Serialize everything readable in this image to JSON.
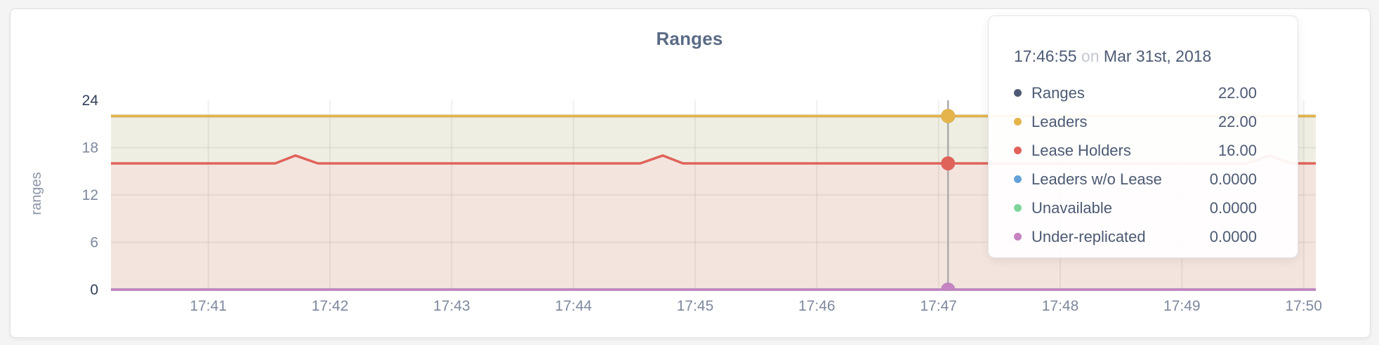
{
  "chart_data": {
    "type": "line",
    "title": "Ranges",
    "ylabel": "ranges",
    "ylim": [
      0,
      24
    ],
    "yticks": [
      0,
      6,
      12,
      18,
      24
    ],
    "yticks_emphasized": [
      0,
      24
    ],
    "grid": true,
    "x_domain": [
      "17:40:12",
      "17:50:06"
    ],
    "xticks": [
      "17:41",
      "17:42",
      "17:43",
      "17:44",
      "17:45",
      "17:46",
      "17:47",
      "17:48",
      "17:49",
      "17:50"
    ],
    "series": [
      {
        "name": "Ranges",
        "color": "#4f5b75",
        "points": [
          [
            "17:40:12",
            22
          ],
          [
            "17:50:06",
            22
          ]
        ]
      },
      {
        "name": "Leaders",
        "color": "#e5b44a",
        "points": [
          [
            "17:40:12",
            22
          ],
          [
            "17:50:06",
            22
          ]
        ]
      },
      {
        "name": "Lease Holders",
        "color": "#e0635a",
        "points": [
          [
            "17:40:12",
            16
          ],
          [
            "17:41:33",
            16
          ],
          [
            "17:41:43",
            17
          ],
          [
            "17:41:54",
            16
          ],
          [
            "17:44:33",
            16
          ],
          [
            "17:44:44",
            17
          ],
          [
            "17:44:54",
            16
          ],
          [
            "17:49:32",
            16
          ],
          [
            "17:49:43",
            17
          ],
          [
            "17:49:54",
            16
          ],
          [
            "17:50:06",
            16
          ]
        ]
      },
      {
        "name": "Leaders w/o Lease",
        "color": "#64a1d9",
        "points": [
          [
            "17:40:12",
            0
          ],
          [
            "17:50:06",
            0
          ]
        ]
      },
      {
        "name": "Unavailable",
        "color": "#7ed49a",
        "points": [
          [
            "17:40:12",
            0
          ],
          [
            "17:50:06",
            0
          ]
        ]
      },
      {
        "name": "Under-replicated",
        "color": "#c583c1",
        "points": [
          [
            "17:40:12",
            0
          ],
          [
            "17:50:06",
            0
          ]
        ]
      }
    ],
    "areas": [
      {
        "top": "Leaders",
        "bottom": "Lease Holders",
        "color": "#efeee2"
      },
      {
        "top": "Lease Holders",
        "bottom": 0,
        "color": "#f3e4de"
      }
    ],
    "hover": {
      "time": "17:46:55",
      "values": {
        "Ranges": 22,
        "Leaders": 22,
        "Lease Holders": 16,
        "Leaders w/o Lease": 0,
        "Unavailable": 0,
        "Under-replicated": 0
      }
    }
  },
  "tooltip": {
    "time": "17:46:55",
    "connector": "on",
    "date": "Mar 31st, 2018",
    "rows": [
      {
        "label": "Ranges",
        "value": "22.00",
        "color": "#4f5b75"
      },
      {
        "label": "Leaders",
        "value": "22.00",
        "color": "#e5b44a"
      },
      {
        "label": "Lease Holders",
        "value": "16.00",
        "color": "#e0635a"
      },
      {
        "label": "Leaders w/o Lease",
        "value": "0.0000",
        "color": "#64a1d9"
      },
      {
        "label": "Unavailable",
        "value": "0.0000",
        "color": "#7ed49a"
      },
      {
        "label": "Under-replicated",
        "value": "0.0000",
        "color": "#c583c1"
      }
    ]
  }
}
